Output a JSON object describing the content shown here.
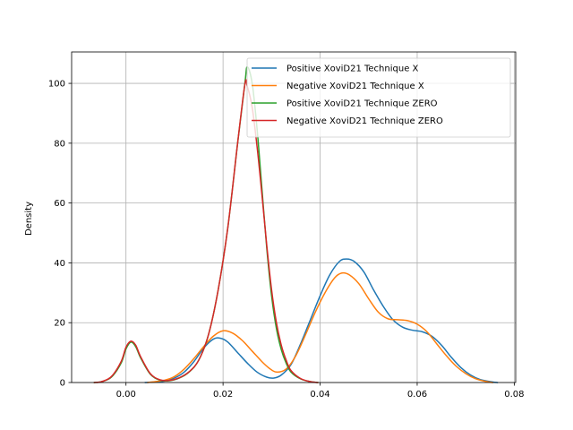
{
  "chart_data": {
    "type": "line",
    "title": "",
    "xlabel": "",
    "ylabel": "Density",
    "xlim": [
      -0.0112,
      0.0803
    ],
    "ylim": [
      0,
      110.5
    ],
    "grid": true,
    "legend_position": "top-right",
    "xticks": [
      {
        "value": 0.0,
        "label": "0.00"
      },
      {
        "value": 0.02,
        "label": "0.02"
      },
      {
        "value": 0.04,
        "label": "0.04"
      },
      {
        "value": 0.06,
        "label": "0.06"
      },
      {
        "value": 0.08,
        "label": "0.08"
      }
    ],
    "yticks": [
      {
        "value": 0,
        "label": "0"
      },
      {
        "value": 20,
        "label": "20"
      },
      {
        "value": 40,
        "label": "40"
      },
      {
        "value": 60,
        "label": "60"
      },
      {
        "value": 80,
        "label": "80"
      },
      {
        "value": 100,
        "label": "100"
      }
    ],
    "series": [
      {
        "name": "Positive XoviD21 Technique X",
        "color": "#1f77b4",
        "points": [
          [
            0.004,
            0
          ],
          [
            0.008,
            0.5
          ],
          [
            0.01,
            1.5
          ],
          [
            0.012,
            3.5
          ],
          [
            0.014,
            7
          ],
          [
            0.016,
            11.5
          ],
          [
            0.018,
            14.5
          ],
          [
            0.0195,
            14.8
          ],
          [
            0.021,
            13.5
          ],
          [
            0.023,
            10
          ],
          [
            0.025,
            6.5
          ],
          [
            0.027,
            3.5
          ],
          [
            0.029,
            1.8
          ],
          [
            0.0305,
            1.5
          ],
          [
            0.032,
            2.5
          ],
          [
            0.034,
            6
          ],
          [
            0.036,
            13
          ],
          [
            0.038,
            21
          ],
          [
            0.04,
            29
          ],
          [
            0.042,
            36
          ],
          [
            0.044,
            40.5
          ],
          [
            0.0455,
            41.3
          ],
          [
            0.047,
            40.5
          ],
          [
            0.049,
            37
          ],
          [
            0.051,
            31
          ],
          [
            0.053,
            25.5
          ],
          [
            0.055,
            21
          ],
          [
            0.057,
            18.5
          ],
          [
            0.059,
            17.5
          ],
          [
            0.061,
            17
          ],
          [
            0.063,
            15.5
          ],
          [
            0.065,
            12.5
          ],
          [
            0.067,
            8.5
          ],
          [
            0.069,
            5
          ],
          [
            0.071,
            2.5
          ],
          [
            0.073,
            1
          ],
          [
            0.0755,
            0.2
          ],
          [
            0.0765,
            0
          ]
        ]
      },
      {
        "name": "Negative XoviD21 Technique X",
        "color": "#ff7f0e",
        "points": [
          [
            0.0045,
            0
          ],
          [
            0.008,
            0.8
          ],
          [
            0.01,
            2
          ],
          [
            0.012,
            4.5
          ],
          [
            0.014,
            8
          ],
          [
            0.016,
            12
          ],
          [
            0.018,
            15.5
          ],
          [
            0.02,
            17.3
          ],
          [
            0.022,
            16.5
          ],
          [
            0.024,
            14
          ],
          [
            0.026,
            10.5
          ],
          [
            0.028,
            7
          ],
          [
            0.0295,
            4.8
          ],
          [
            0.031,
            3.5
          ],
          [
            0.033,
            4.5
          ],
          [
            0.035,
            9
          ],
          [
            0.037,
            16
          ],
          [
            0.039,
            23.5
          ],
          [
            0.041,
            30
          ],
          [
            0.043,
            35
          ],
          [
            0.0445,
            36.6
          ],
          [
            0.046,
            36
          ],
          [
            0.048,
            33
          ],
          [
            0.05,
            28
          ],
          [
            0.052,
            23.5
          ],
          [
            0.054,
            21.3
          ],
          [
            0.056,
            21
          ],
          [
            0.058,
            20.7
          ],
          [
            0.06,
            19.5
          ],
          [
            0.062,
            17
          ],
          [
            0.064,
            13
          ],
          [
            0.066,
            9
          ],
          [
            0.068,
            5.5
          ],
          [
            0.07,
            3
          ],
          [
            0.072,
            1.3
          ],
          [
            0.074,
            0.4
          ],
          [
            0.0755,
            0
          ]
        ]
      },
      {
        "name": "Positive XoviD21 Technique ZERO",
        "color": "#2ca02c",
        "points": [
          [
            -0.0065,
            0
          ],
          [
            -0.005,
            0.3
          ],
          [
            -0.003,
            1.8
          ],
          [
            -0.001,
            6.5
          ],
          [
            0.0,
            11.2
          ],
          [
            0.001,
            13.5
          ],
          [
            0.002,
            12
          ],
          [
            0.003,
            8.3
          ],
          [
            0.005,
            2.8
          ],
          [
            0.007,
            0.8
          ],
          [
            0.009,
            0.6
          ],
          [
            0.011,
            1.5
          ],
          [
            0.013,
            3.5
          ],
          [
            0.015,
            7.5
          ],
          [
            0.017,
            16
          ],
          [
            0.019,
            31
          ],
          [
            0.021,
            52
          ],
          [
            0.023,
            80
          ],
          [
            0.0245,
            100
          ],
          [
            0.025,
            105.5
          ],
          [
            0.026,
            100
          ],
          [
            0.027,
            85
          ],
          [
            0.028,
            65
          ],
          [
            0.029,
            45
          ],
          [
            0.03,
            29
          ],
          [
            0.031,
            18
          ],
          [
            0.032,
            11
          ],
          [
            0.033,
            6.5
          ],
          [
            0.034,
            3.5
          ],
          [
            0.036,
            1.2
          ],
          [
            0.038,
            0.3
          ],
          [
            0.0395,
            0
          ]
        ]
      },
      {
        "name": "Negative XoviD21 Technique ZERO",
        "color": "#d62728",
        "points": [
          [
            -0.0065,
            0
          ],
          [
            -0.005,
            0.3
          ],
          [
            -0.003,
            2
          ],
          [
            -0.001,
            7
          ],
          [
            0.0,
            11.8
          ],
          [
            0.001,
            13.8
          ],
          [
            0.002,
            12.5
          ],
          [
            0.003,
            8.7
          ],
          [
            0.005,
            3
          ],
          [
            0.007,
            0.9
          ],
          [
            0.009,
            0.7
          ],
          [
            0.011,
            1.6
          ],
          [
            0.013,
            3.6
          ],
          [
            0.015,
            7.5
          ],
          [
            0.017,
            16
          ],
          [
            0.019,
            31
          ],
          [
            0.021,
            52
          ],
          [
            0.023,
            80
          ],
          [
            0.0245,
            99.7
          ],
          [
            0.025,
            99
          ],
          [
            0.026,
            92
          ],
          [
            0.027,
            79
          ],
          [
            0.028,
            63
          ],
          [
            0.029,
            46
          ],
          [
            0.03,
            31
          ],
          [
            0.031,
            20
          ],
          [
            0.032,
            12.5
          ],
          [
            0.033,
            7.5
          ],
          [
            0.034,
            4
          ],
          [
            0.036,
            1.3
          ],
          [
            0.038,
            0.3
          ],
          [
            0.0395,
            0
          ]
        ]
      }
    ]
  }
}
